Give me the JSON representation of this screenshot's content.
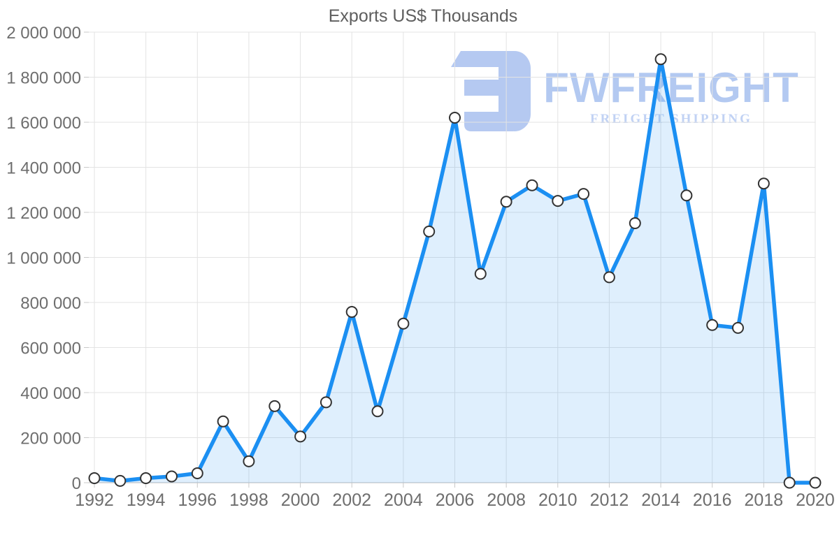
{
  "watermark": {
    "icon": "fwfreight-logo-mark",
    "brand": "FWFREIGHT",
    "tagline": "FREIGHT SHIPPING"
  },
  "chart_data": {
    "type": "area",
    "title": "Exports US$ Thousands",
    "x": [
      1992,
      1993,
      1994,
      1995,
      1996,
      1997,
      1998,
      1999,
      2000,
      2001,
      2002,
      2003,
      2004,
      2005,
      2006,
      2007,
      2008,
      2009,
      2010,
      2011,
      2012,
      2013,
      2014,
      2015,
      2016,
      2017,
      2018,
      2019,
      2020
    ],
    "series": [
      {
        "name": "Exports US$ Thousands",
        "values": [
          20000,
          8000,
          20000,
          28000,
          42000,
          272000,
          95000,
          340000,
          205000,
          357000,
          758000,
          317000,
          706000,
          1115000,
          1620000,
          927000,
          1247000,
          1320000,
          1251000,
          1282000,
          912000,
          1152000,
          1880000,
          1275000,
          700000,
          687000,
          1328000,
          0,
          0
        ]
      }
    ],
    "xlabel": "",
    "ylabel": "",
    "ylim": [
      0,
      2000000
    ],
    "grid": true,
    "legend": "none",
    "x_tick_labels": [
      "1992",
      "1994",
      "1996",
      "1998",
      "2000",
      "2002",
      "2004",
      "2006",
      "2008",
      "2010",
      "2012",
      "2014",
      "2016",
      "2018",
      "2020"
    ],
    "y_tick_values": [
      0,
      200000,
      400000,
      600000,
      800000,
      1000000,
      1200000,
      1400000,
      1600000,
      1800000,
      2000000
    ],
    "y_tick_labels": [
      "0",
      "200 000",
      "400 000",
      "600 000",
      "800 000",
      "1 000 000",
      "1 200 000",
      "1 400 000",
      "1 600 000",
      "1 800 000",
      "2 000 000"
    ],
    "colors": {
      "line": "#1b8ff2",
      "area_fill": "rgba(27,143,242,0.14)",
      "marker_fill": "#ffffff",
      "marker_stroke": "#333333",
      "grid": "#e3e3e3",
      "axis": "#c8c8c8",
      "tick": "#c8c8c8",
      "labels": "#6e6e6e",
      "title": "#5e5e5e",
      "watermark": "#b5c9f1",
      "watermark_tagline": "#c1d2f4"
    }
  }
}
